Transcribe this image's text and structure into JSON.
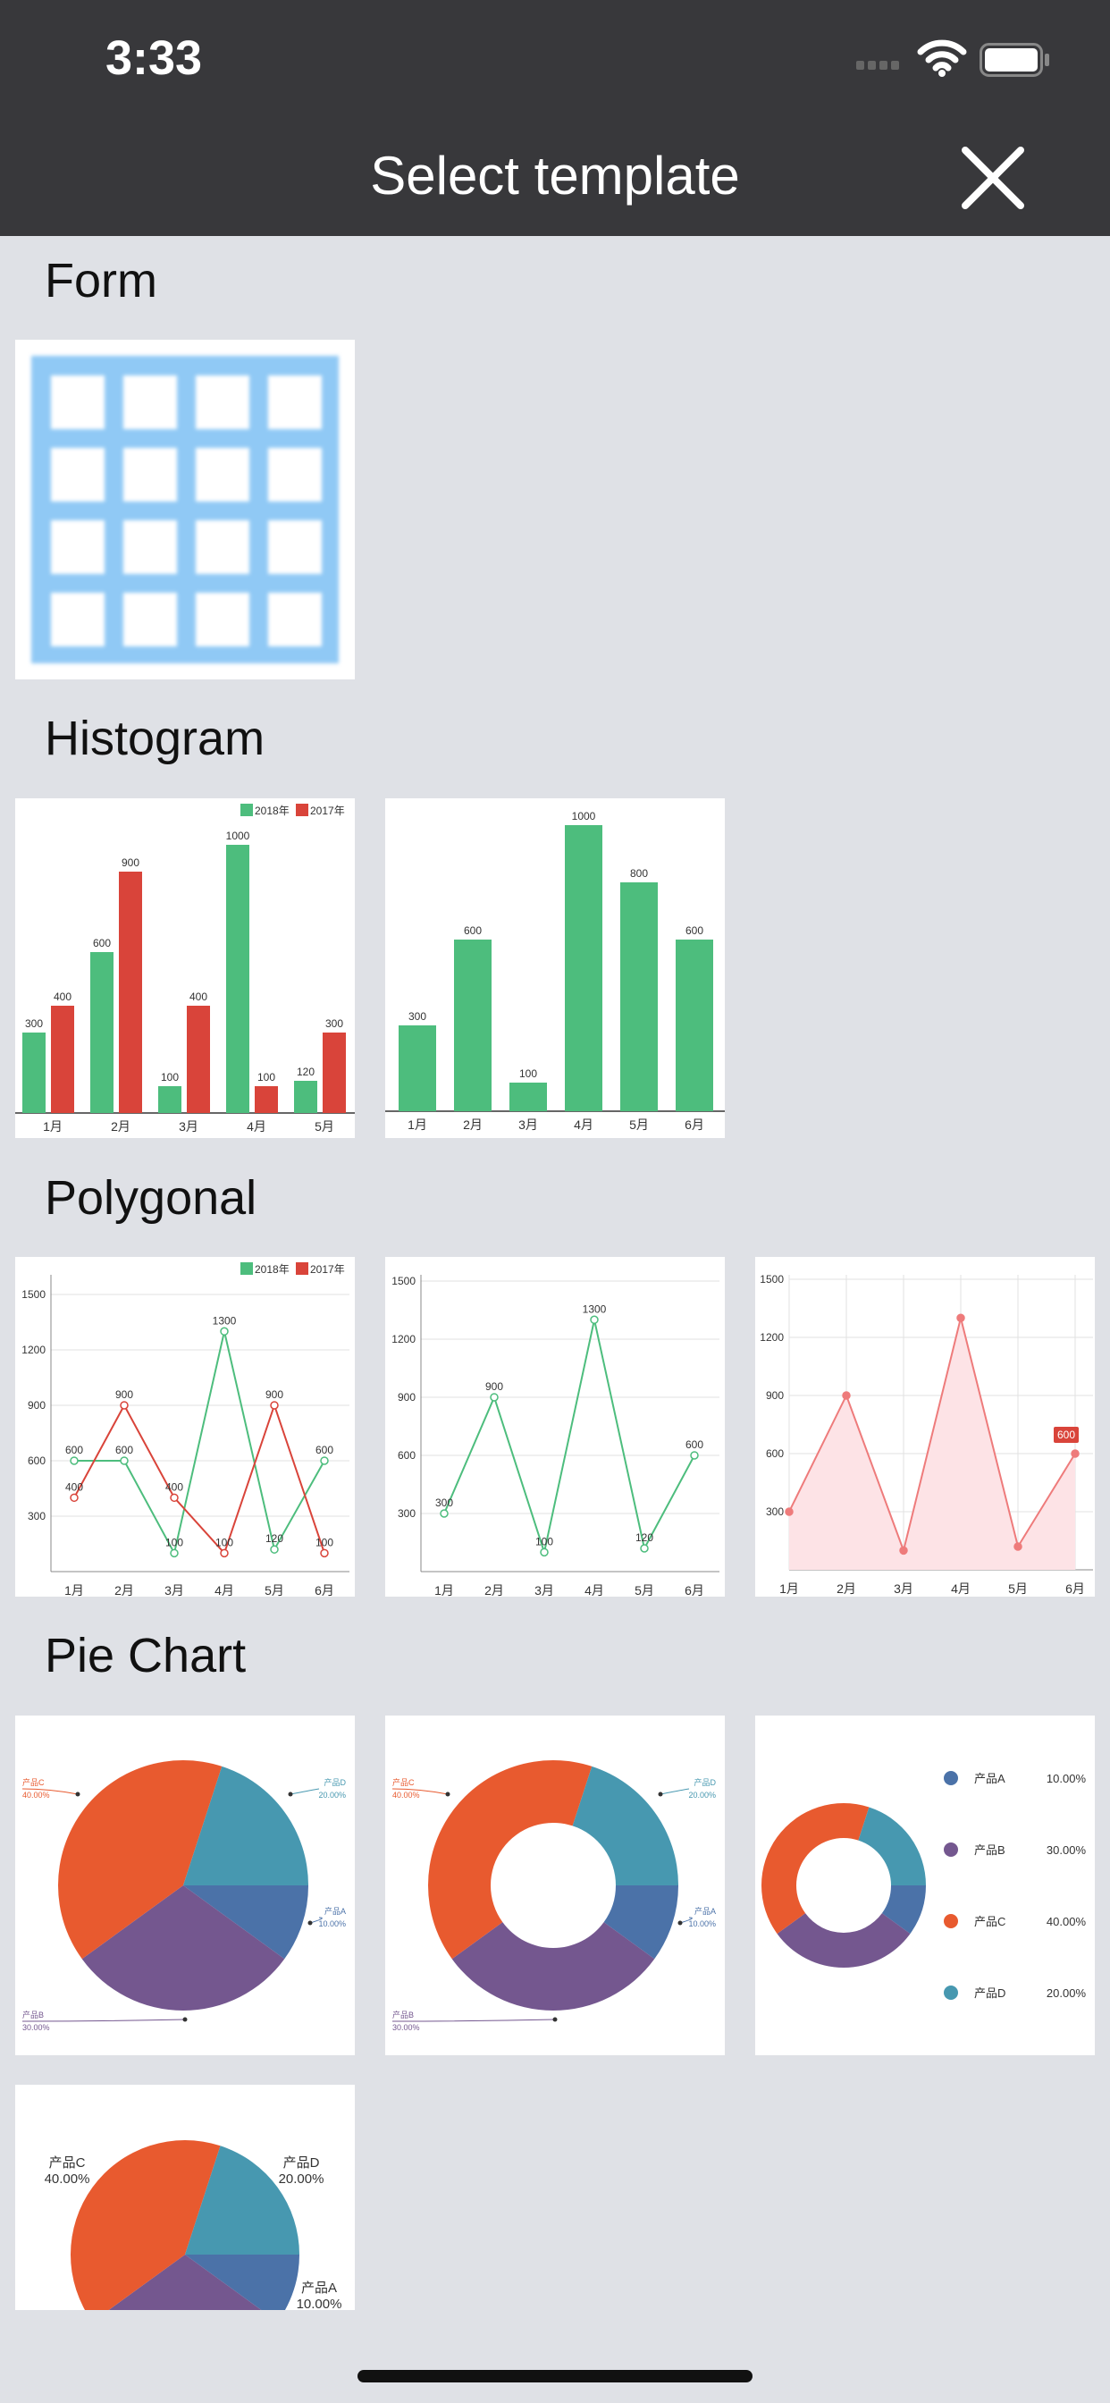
{
  "status": {
    "time": "3:33"
  },
  "header": {
    "title": "Select template"
  },
  "sections": {
    "form": "Form",
    "histogram": "Histogram",
    "polygonal": "Polygonal",
    "pie": "Pie Chart"
  },
  "colors": {
    "green": "#4dbd7d",
    "red": "#d9443a",
    "pink": "#ee7b7b",
    "pieA": "#4b72a8",
    "pieB": "#74578f",
    "pieC": "#e85a2f",
    "pieD": "#4798b0",
    "form_blue": "#90c9f5"
  },
  "legend": {
    "y2018": "2018年",
    "y2017": "2017年"
  },
  "chart_data": [
    {
      "type": "bar",
      "categories": [
        "1月",
        "2月",
        "3月",
        "4月",
        "5月"
      ],
      "series": [
        {
          "name": "2018年",
          "values": [
            300,
            600,
            100,
            1000,
            120
          ]
        },
        {
          "name": "2017年",
          "values": [
            400,
            900,
            400,
            100,
            300
          ]
        }
      ]
    },
    {
      "type": "bar",
      "categories": [
        "1月",
        "2月",
        "3月",
        "4月",
        "5月",
        "6月"
      ],
      "values": [
        300,
        600,
        100,
        1000,
        800,
        600
      ]
    },
    {
      "type": "line",
      "categories": [
        "1月",
        "2月",
        "3月",
        "4月",
        "5月",
        "6月"
      ],
      "yticks": [
        300,
        600,
        900,
        1200,
        1500
      ],
      "series": [
        {
          "name": "2018年",
          "values": [
            600,
            600,
            100,
            1300,
            120,
            600
          ]
        },
        {
          "name": "2017年",
          "values": [
            400,
            900,
            400,
            100,
            900,
            100
          ]
        }
      ]
    },
    {
      "type": "line",
      "categories": [
        "1月",
        "2月",
        "3月",
        "4月",
        "5月",
        "6月"
      ],
      "yticks": [
        300,
        600,
        900,
        1200,
        1500
      ],
      "values": [
        300,
        900,
        100,
        1300,
        120,
        600
      ]
    },
    {
      "type": "area",
      "categories": [
        "1月",
        "2月",
        "3月",
        "4月",
        "5月",
        "6月"
      ],
      "yticks": [
        300,
        600,
        900,
        1200,
        1500
      ],
      "values": [
        300,
        900,
        100,
        1300,
        120,
        600
      ],
      "highlight": "600"
    },
    {
      "type": "pie",
      "labels": [
        "产品A",
        "产品B",
        "产品C",
        "产品D"
      ],
      "values": [
        10,
        30,
        40,
        20
      ],
      "percent_labels": [
        "10.00%",
        "30.00%",
        "40.00%",
        "20.00%"
      ]
    }
  ]
}
